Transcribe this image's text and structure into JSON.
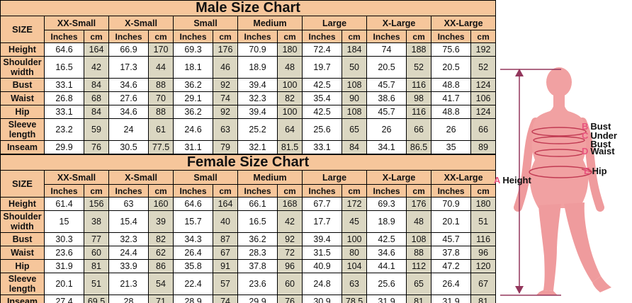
{
  "colors": {
    "header_bg": "#F6C69B",
    "cm_cell_bg": "#DBD7C2",
    "inches_cell_bg": "#FFFFFF",
    "border": "#000000",
    "figure_body": "#F1A1A2",
    "figure_limb": "#EF9B9D",
    "measure_line": "#C13A52",
    "height_line": "#93365C",
    "label_key": "#E8537E"
  },
  "chart_data": [
    {
      "type": "table",
      "title": "Male Size Chart",
      "corner_label": "SIZE",
      "sizes": [
        "XX-Small",
        "X-Small",
        "Small",
        "Medium",
        "Large",
        "X-Large",
        "XX-Large"
      ],
      "unit_labels": [
        "Inches",
        "cm"
      ],
      "rows": [
        {
          "label": "Height",
          "inches": [
            64.6,
            66.9,
            69.3,
            70.9,
            72.4,
            74,
            75.6
          ],
          "cm": [
            164,
            170,
            176,
            180,
            184,
            188,
            192
          ]
        },
        {
          "label": "Shoulder width",
          "inches": [
            16.5,
            17.3,
            18.1,
            18.9,
            19.7,
            20.5,
            20.5
          ],
          "cm": [
            42,
            44,
            46,
            48,
            50,
            52,
            52
          ]
        },
        {
          "label": "Bust",
          "inches": [
            33.1,
            34.6,
            36.2,
            39.4,
            42.5,
            45.7,
            48.8
          ],
          "cm": [
            84,
            88,
            92,
            100,
            108,
            116,
            124
          ]
        },
        {
          "label": "Waist",
          "inches": [
            26.8,
            27.6,
            29.1,
            32.3,
            35.4,
            38.6,
            41.7
          ],
          "cm": [
            68,
            70,
            74,
            82,
            90,
            98,
            106
          ]
        },
        {
          "label": "Hip",
          "inches": [
            33.1,
            34.6,
            36.2,
            39.4,
            42.5,
            45.7,
            48.8
          ],
          "cm": [
            84,
            88,
            92,
            100,
            108,
            116,
            124
          ]
        },
        {
          "label": "Sleeve length",
          "inches": [
            23.2,
            24,
            24.6,
            25.2,
            25.6,
            26,
            26
          ],
          "cm": [
            59,
            61,
            63,
            64,
            65,
            66,
            66
          ]
        },
        {
          "label": "Inseam",
          "inches": [
            29.9,
            30.5,
            31.1,
            32.1,
            33.1,
            34.1,
            35
          ],
          "cm": [
            76,
            77.5,
            79,
            81.5,
            84,
            86.5,
            89
          ]
        }
      ]
    },
    {
      "type": "table",
      "title": "Female Size Chart",
      "corner_label": "SIZE",
      "sizes": [
        "XX-Small",
        "X-Small",
        "Small",
        "Medium",
        "Large",
        "X-Large",
        "XX-Large"
      ],
      "unit_labels": [
        "Inches",
        "cm"
      ],
      "rows": [
        {
          "label": "Height",
          "inches": [
            61.4,
            63,
            64.6,
            66.1,
            67.7,
            69.3,
            70.9
          ],
          "cm": [
            156,
            160,
            164,
            168,
            172,
            176,
            180
          ]
        },
        {
          "label": "Shoulder width",
          "inches": [
            15,
            15.4,
            15.7,
            16.5,
            17.7,
            18.9,
            20.1
          ],
          "cm": [
            38,
            39,
            40,
            42,
            45,
            48,
            51
          ]
        },
        {
          "label": "Bust",
          "inches": [
            30.3,
            32.3,
            34.3,
            36.2,
            39.4,
            42.5,
            45.7
          ],
          "cm": [
            77,
            82,
            87,
            92,
            100,
            108,
            116
          ]
        },
        {
          "label": "Waist",
          "inches": [
            23.6,
            24.4,
            26.4,
            28.3,
            31.5,
            34.6,
            37.8
          ],
          "cm": [
            60,
            62,
            67,
            72,
            80,
            88,
            96
          ]
        },
        {
          "label": "Hip",
          "inches": [
            31.9,
            33.9,
            35.8,
            37.8,
            40.9,
            44.1,
            47.2
          ],
          "cm": [
            81,
            86,
            91,
            96,
            104,
            112,
            120
          ]
        },
        {
          "label": "Sleeve length",
          "inches": [
            20.1,
            21.3,
            22.4,
            23.6,
            24.8,
            25.6,
            26.4
          ],
          "cm": [
            51,
            54,
            57,
            60,
            63,
            65,
            67
          ]
        },
        {
          "label": "Inseam",
          "inches": [
            27.4,
            28,
            28.9,
            29.9,
            30.9,
            31.9,
            31.9
          ],
          "cm": [
            69.5,
            71,
            74,
            76,
            78.5,
            81,
            81
          ]
        }
      ]
    }
  ],
  "figure": {
    "labels": [
      {
        "key": "A",
        "text": "Height"
      },
      {
        "key": "B",
        "text": "Bust"
      },
      {
        "key": "C",
        "text": "Under Bust"
      },
      {
        "key": "D",
        "text": "Waist"
      },
      {
        "key": "E",
        "text": "Hip"
      }
    ]
  }
}
